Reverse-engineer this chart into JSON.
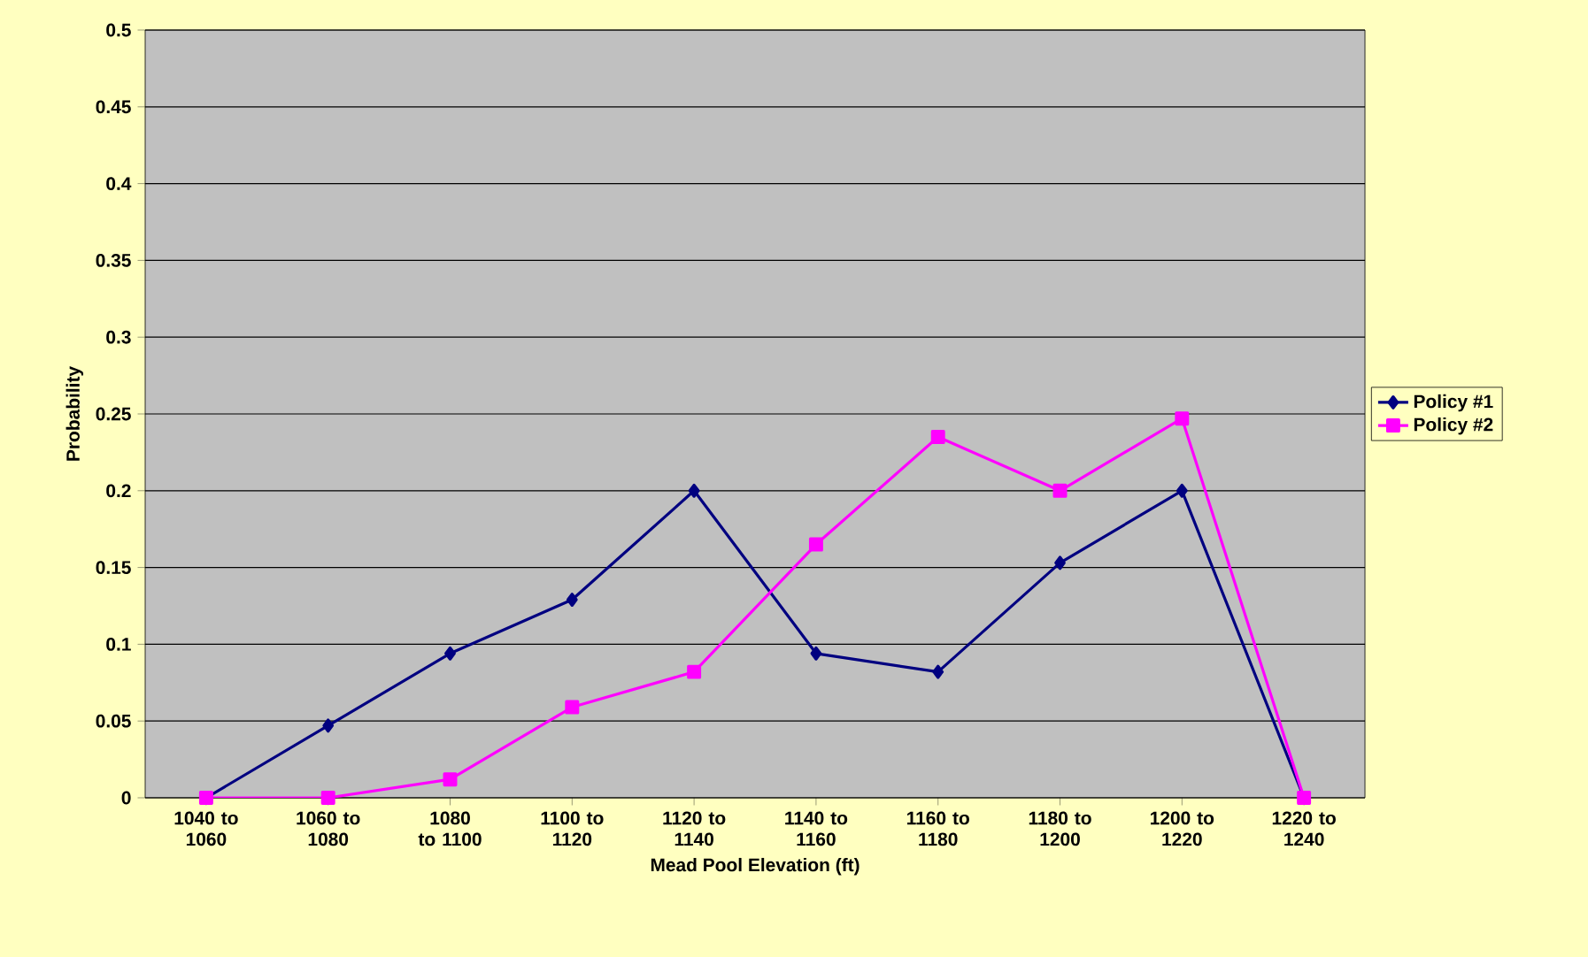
{
  "chart_data": {
    "type": "line",
    "xlabel": "Mead Pool Elevation (ft)",
    "ylabel": "Probability",
    "categories": [
      "1040 to 1060",
      "1060 to 1080",
      "1080 to 1100",
      "1100 to 1120",
      "1120 to 1140",
      "1140 to 1160",
      "1160 to 1180",
      "1180 to 1200",
      "1200 to 1220",
      "1220 to 1240"
    ],
    "series": [
      {
        "name": "Policy #1",
        "color": "#000080",
        "marker": "diamond",
        "values": [
          0,
          0.047,
          0.094,
          0.129,
          0.2,
          0.094,
          0.082,
          0.153,
          0.2,
          0
        ]
      },
      {
        "name": "Policy #2",
        "color": "#ff00ff",
        "marker": "square",
        "values": [
          0,
          0,
          0.012,
          0.059,
          0.082,
          0.165,
          0.235,
          0.2,
          0.247,
          0
        ]
      }
    ],
    "ylim": [
      0,
      0.5
    ],
    "yticks": [
      0,
      0.05,
      0.1,
      0.15,
      0.2,
      0.25,
      0.3,
      0.35,
      0.4,
      0.45,
      0.5
    ],
    "grid": "y",
    "legend": "right",
    "line_style": "solid"
  }
}
